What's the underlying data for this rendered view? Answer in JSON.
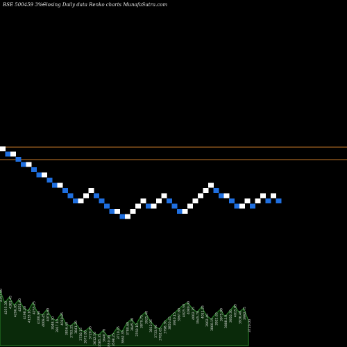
{
  "header": {
    "symbol": "BSE 500459 3%~",
    "caption": "Closing Daily data  Renko  charts MunafaSutra.com"
  },
  "chart_data": {
    "type": "renko",
    "brick_size": 1,
    "colors": {
      "up": "#ffffff",
      "down": "#1f6fe0",
      "reference_line": "#c87a2a",
      "volume": "#0a2a0a",
      "volume_outline": "#2c8a2c",
      "volume_label": "#dddddd"
    },
    "reference_lines": [
      50.0,
      47.6
    ],
    "bricks": [
      {
        "o": 49,
        "c": 50,
        "d": "up"
      },
      {
        "o": 49,
        "c": 48,
        "d": "down"
      },
      {
        "o": 48,
        "c": 49,
        "d": "up"
      },
      {
        "o": 48,
        "c": 47,
        "d": "down"
      },
      {
        "o": 47,
        "c": 46,
        "d": "down"
      },
      {
        "o": 46,
        "c": 47,
        "d": "up"
      },
      {
        "o": 46,
        "c": 45,
        "d": "down"
      },
      {
        "o": 45,
        "c": 44,
        "d": "down"
      },
      {
        "o": 44,
        "c": 45,
        "d": "up"
      },
      {
        "o": 44,
        "c": 43,
        "d": "down"
      },
      {
        "o": 43,
        "c": 42,
        "d": "down"
      },
      {
        "o": 42,
        "c": 43,
        "d": "up"
      },
      {
        "o": 42,
        "c": 41,
        "d": "down"
      },
      {
        "o": 41,
        "c": 40,
        "d": "down"
      },
      {
        "o": 40,
        "c": 39,
        "d": "down"
      },
      {
        "o": 39,
        "c": 40,
        "d": "up"
      },
      {
        "o": 40,
        "c": 41,
        "d": "up"
      },
      {
        "o": 41,
        "c": 42,
        "d": "up"
      },
      {
        "o": 41,
        "c": 40,
        "d": "down"
      },
      {
        "o": 40,
        "c": 39,
        "d": "down"
      },
      {
        "o": 39,
        "c": 38,
        "d": "down"
      },
      {
        "o": 38,
        "c": 37,
        "d": "down"
      },
      {
        "o": 37,
        "c": 38,
        "d": "up"
      },
      {
        "o": 37,
        "c": 36,
        "d": "down"
      },
      {
        "o": 36,
        "c": 37,
        "d": "up"
      },
      {
        "o": 37,
        "c": 38,
        "d": "up"
      },
      {
        "o": 38,
        "c": 39,
        "d": "up"
      },
      {
        "o": 39,
        "c": 40,
        "d": "up"
      },
      {
        "o": 39,
        "c": 38,
        "d": "down"
      },
      {
        "o": 38,
        "c": 39,
        "d": "up"
      },
      {
        "o": 39,
        "c": 40,
        "d": "up"
      },
      {
        "o": 40,
        "c": 41,
        "d": "up"
      },
      {
        "o": 40,
        "c": 39,
        "d": "down"
      },
      {
        "o": 39,
        "c": 38,
        "d": "down"
      },
      {
        "o": 38,
        "c": 37,
        "d": "down"
      },
      {
        "o": 37,
        "c": 38,
        "d": "up"
      },
      {
        "o": 38,
        "c": 39,
        "d": "up"
      },
      {
        "o": 39,
        "c": 40,
        "d": "up"
      },
      {
        "o": 40,
        "c": 41,
        "d": "up"
      },
      {
        "o": 41,
        "c": 42,
        "d": "up"
      },
      {
        "o": 42,
        "c": 43,
        "d": "up"
      },
      {
        "o": 42,
        "c": 41,
        "d": "down"
      },
      {
        "o": 41,
        "c": 40,
        "d": "down"
      },
      {
        "o": 40,
        "c": 41,
        "d": "up"
      },
      {
        "o": 40,
        "c": 39,
        "d": "down"
      },
      {
        "o": 39,
        "c": 38,
        "d": "down"
      },
      {
        "o": 38,
        "c": 39,
        "d": "up"
      },
      {
        "o": 39,
        "c": 40,
        "d": "up"
      },
      {
        "o": 39,
        "c": 39,
        "d": "down"
      },
      {
        "o": 39,
        "c": 40,
        "d": "up"
      },
      {
        "o": 40,
        "c": 41,
        "d": "up"
      },
      {
        "o": 40,
        "c": 40,
        "d": "down"
      },
      {
        "o": 40,
        "c": 41,
        "d": "up"
      },
      {
        "o": 40,
        "c": 40,
        "d": "down"
      }
    ],
    "volume_axis_max": 90,
    "volume": [
      {
        "v": 80,
        "label": "4357.60"
      },
      {
        "v": 62,
        "label": "4255.30"
      },
      {
        "v": 70,
        "label": "4383.45"
      },
      {
        "v": 58,
        "label": "4296.05"
      },
      {
        "v": 66,
        "label": "4251.40"
      },
      {
        "v": 55,
        "label": "4198.20"
      },
      {
        "v": 50,
        "label": "4133.10"
      },
      {
        "v": 62,
        "label": "4255.25"
      },
      {
        "v": 48,
        "label": "4100.90"
      },
      {
        "v": 44,
        "label": "4009.45"
      },
      {
        "v": 52,
        "label": "4076.60"
      },
      {
        "v": 40,
        "label": "3948.30"
      },
      {
        "v": 36,
        "label": "3917.10"
      },
      {
        "v": 46,
        "label": "4010.85"
      },
      {
        "v": 32,
        "label": "3856.40"
      },
      {
        "v": 28,
        "label": "3793.25"
      },
      {
        "v": 34,
        "label": "3841.20"
      },
      {
        "v": 24,
        "label": "3730.15"
      },
      {
        "v": 20,
        "label": "3672.80"
      },
      {
        "v": 26,
        "label": "3720.05"
      },
      {
        "v": 18,
        "label": "3612.50"
      },
      {
        "v": 15,
        "label": "3585.35"
      },
      {
        "v": 22,
        "label": "3640.70"
      },
      {
        "v": 13,
        "label": "3550.90"
      },
      {
        "v": 16,
        "label": "3598.25"
      },
      {
        "v": 26,
        "label": "3710.45"
      },
      {
        "v": 20,
        "label": "3662.35"
      },
      {
        "v": 32,
        "label": "3780.60"
      },
      {
        "v": 38,
        "label": "3845.20"
      },
      {
        "v": 30,
        "label": "3760.10"
      },
      {
        "v": 42,
        "label": "3870.75"
      },
      {
        "v": 48,
        "label": "3925.40"
      },
      {
        "v": 36,
        "label": "3812.05"
      },
      {
        "v": 28,
        "label": "3733.90"
      },
      {
        "v": 24,
        "label": "3702.65"
      },
      {
        "v": 34,
        "label": "3798.30"
      },
      {
        "v": 40,
        "label": "3850.45"
      },
      {
        "v": 46,
        "label": "3910.15"
      },
      {
        "v": 52,
        "label": "3967.80"
      },
      {
        "v": 58,
        "label": "4025.50"
      },
      {
        "v": 62,
        "label": "4080.00"
      },
      {
        "v": 54,
        "label": "4002.35"
      },
      {
        "v": 48,
        "label": "3945.70"
      },
      {
        "v": 56,
        "label": "4011.25"
      },
      {
        "v": 44,
        "label": "3902.40"
      },
      {
        "v": 38,
        "label": "3860.15"
      },
      {
        "v": 46,
        "label": "3921.65"
      },
      {
        "v": 52,
        "label": "3975.90"
      },
      {
        "v": 42,
        "label": "3888.10"
      },
      {
        "v": 50,
        "label": "3950.30"
      },
      {
        "v": 58,
        "label": "4015.85"
      },
      {
        "v": 48,
        "label": "3936.40"
      },
      {
        "v": 54,
        "label": "3992.75"
      },
      {
        "v": 36,
        "label": "3720.00"
      }
    ]
  }
}
